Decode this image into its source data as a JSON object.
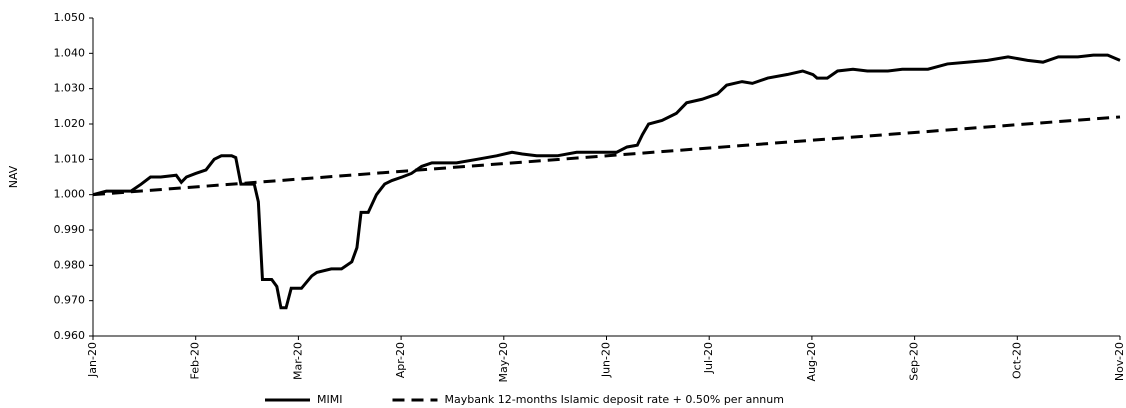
{
  "chart_data": {
    "type": "line",
    "ylabel": "NAV",
    "xlim": [
      0,
      10
    ],
    "xticks": [
      {
        "value": 0,
        "label": "Jan-20"
      },
      {
        "value": 1,
        "label": "Feb-20"
      },
      {
        "value": 2,
        "label": "Mar-20"
      },
      {
        "value": 3,
        "label": "Apr-20"
      },
      {
        "value": 4,
        "label": "May-20"
      },
      {
        "value": 5,
        "label": "Jun-20"
      },
      {
        "value": 6,
        "label": "Jul-20"
      },
      {
        "value": 7,
        "label": "Aug-20"
      },
      {
        "value": 8,
        "label": "Sep-20"
      },
      {
        "value": 9,
        "label": "Oct-20"
      },
      {
        "value": 10,
        "label": "Nov-20"
      }
    ],
    "ylim": [
      0.96,
      1.05
    ],
    "yticks": [
      {
        "value": 0.96,
        "label": "0.960"
      },
      {
        "value": 0.97,
        "label": "0.970"
      },
      {
        "value": 0.98,
        "label": "0.980"
      },
      {
        "value": 0.99,
        "label": "0.990"
      },
      {
        "value": 1.0,
        "label": "1.000"
      },
      {
        "value": 1.01,
        "label": "1.010"
      },
      {
        "value": 1.02,
        "label": "1.020"
      },
      {
        "value": 1.03,
        "label": "1.030"
      },
      {
        "value": 1.04,
        "label": "1.040"
      },
      {
        "value": 1.05,
        "label": "1.050"
      }
    ],
    "legend": "bottom",
    "series": [
      {
        "name": "MIMI",
        "color": "#000000",
        "dash": "solid",
        "x": [
          0,
          0.13,
          0.37,
          0.47,
          0.56,
          0.66,
          0.81,
          0.86,
          0.91,
          1.0,
          1.1,
          1.18,
          1.25,
          1.35,
          1.39,
          1.44,
          1.57,
          1.61,
          1.65,
          1.74,
          1.79,
          1.83,
          1.88,
          1.93,
          2.03,
          2.13,
          2.18,
          2.32,
          2.42,
          2.52,
          2.57,
          2.61,
          2.68,
          2.76,
          2.84,
          2.91,
          3.01,
          3.1,
          3.2,
          3.3,
          3.54,
          3.74,
          3.93,
          4.08,
          4.18,
          4.32,
          4.52,
          4.71,
          4.91,
          5.1,
          5.2,
          5.3,
          5.35,
          5.41,
          5.54,
          5.68,
          5.78,
          5.93,
          6.08,
          6.17,
          6.32,
          6.42,
          6.57,
          6.76,
          6.91,
          7.01,
          7.05,
          7.15,
          7.25,
          7.4,
          7.54,
          7.74,
          7.88,
          8.13,
          8.32,
          8.52,
          8.71,
          8.91,
          9.1,
          9.25,
          9.4,
          9.59,
          9.74,
          9.88,
          10
        ],
        "values": [
          1.0,
          1.001,
          1.001,
          1.003,
          1.005,
          1.005,
          1.0055,
          1.0035,
          1.005,
          1.006,
          1.007,
          1.01,
          1.011,
          1.011,
          1.0105,
          1.003,
          1.003,
          0.998,
          0.976,
          0.976,
          0.974,
          0.968,
          0.968,
          0.9735,
          0.9735,
          0.977,
          0.978,
          0.979,
          0.979,
          0.981,
          0.985,
          0.995,
          0.995,
          1.0,
          1.003,
          1.004,
          1.005,
          1.006,
          1.008,
          1.009,
          1.009,
          1.01,
          1.011,
          1.012,
          1.0115,
          1.011,
          1.011,
          1.012,
          1.012,
          1.012,
          1.0135,
          1.014,
          1.017,
          1.02,
          1.021,
          1.023,
          1.026,
          1.027,
          1.0285,
          1.031,
          1.032,
          1.0315,
          1.033,
          1.034,
          1.035,
          1.034,
          1.033,
          1.033,
          1.035,
          1.0355,
          1.035,
          1.035,
          1.0355,
          1.0355,
          1.037,
          1.0375,
          1.038,
          1.039,
          1.038,
          1.0375,
          1.039,
          1.039,
          1.0395,
          1.0395,
          1.038
        ]
      },
      {
        "name": "Maybank 12-months Islamic deposit rate + 0.50% per annum",
        "color": "#000000",
        "dash": "dashed",
        "x": [
          0,
          10
        ],
        "values": [
          1.0,
          1.022
        ]
      }
    ]
  }
}
